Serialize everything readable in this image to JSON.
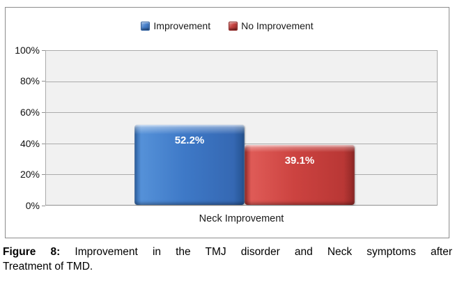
{
  "chart_data": {
    "type": "bar",
    "title": "",
    "categories": [
      "Neck Improvement"
    ],
    "series": [
      {
        "name": "Improvement",
        "values": [
          52.2
        ],
        "labels": [
          "52.2%"
        ],
        "color": "#3E79C7"
      },
      {
        "name": "No Improvement",
        "values": [
          39.1
        ],
        "labels": [
          "39.1%"
        ],
        "color": "#CC4340"
      }
    ],
    "xlabel": "Neck Improvement",
    "ylabel": "",
    "ylim": [
      0,
      100
    ],
    "yticks": [
      "0%",
      "20%",
      "40%",
      "60%",
      "80%",
      "100%"
    ],
    "grid": true,
    "legend_position": "top-center",
    "plot_background": "#F1F1F1",
    "gridline_color": "#ABABAB",
    "border_color": "#8C8C8C"
  },
  "caption": {
    "label": "Figure 8:",
    "line1_rest": "Improvement in the TMJ disorder and Neck symptoms after",
    "line2": "Treatment of TMD."
  }
}
